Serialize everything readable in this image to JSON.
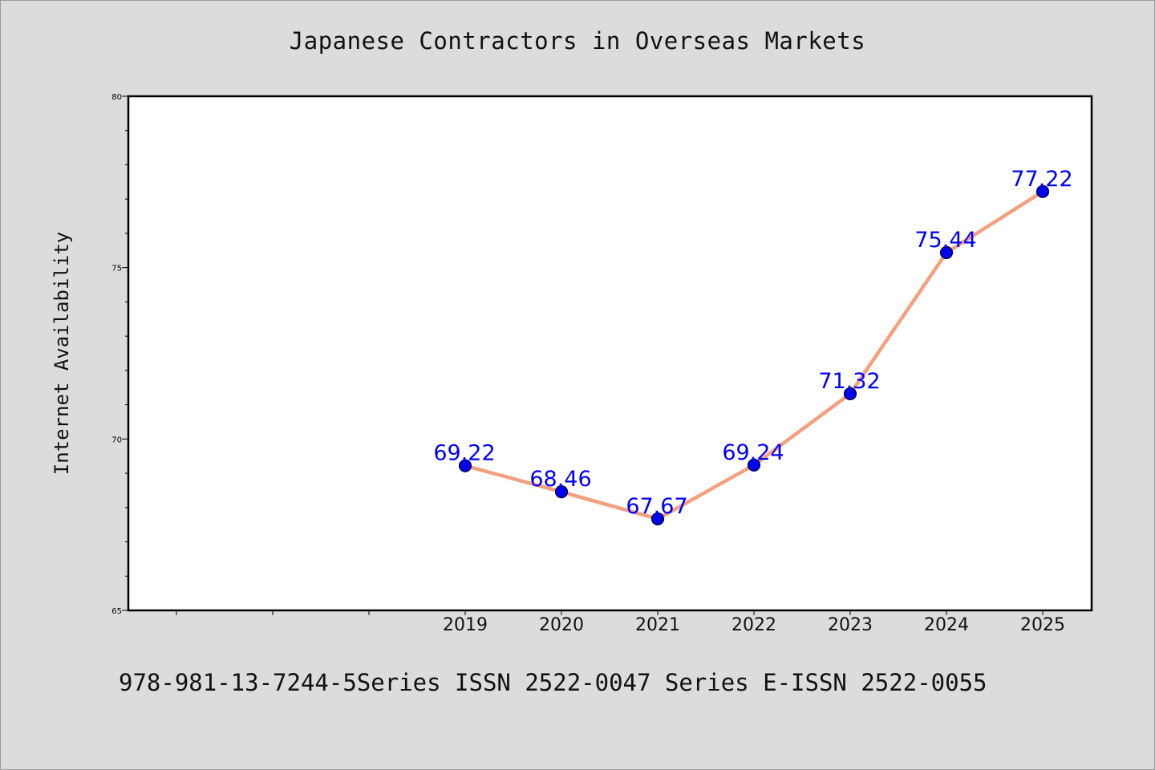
{
  "chart_data": {
    "type": "line",
    "title": "Japanese Contractors in Overseas Markets",
    "ylabel": "Internet Availability",
    "xlabel": "",
    "x_ticks": [
      "",
      "",
      "",
      "2019",
      "2020",
      "2021",
      "2022",
      "2023",
      "2024",
      "2025"
    ],
    "categories": [
      "2019",
      "2020",
      "2021",
      "2022",
      "2023",
      "2024",
      "2025"
    ],
    "values": [
      69.22,
      68.46,
      67.67,
      69.24,
      71.32,
      75.44,
      77.22
    ],
    "value_labels": [
      "69.22",
      "68.46",
      "67.67",
      "69.24",
      "71.32",
      "75.44",
      "77.22"
    ],
    "ylim": [
      65,
      80
    ],
    "y_major_ticks": [
      65,
      70,
      75,
      80
    ],
    "y_minor_step": 1,
    "grid": false,
    "colors": {
      "line": "#f4a07e",
      "marker": "#0000ee",
      "label": "#0000ff",
      "plot_bg": "#ffffff",
      "page_bg": "#dcdcdc"
    }
  },
  "footer": {
    "text": "978-981-13-7244-5Series ISSN 2522-0047 Series E-ISSN 2522-0055"
  }
}
